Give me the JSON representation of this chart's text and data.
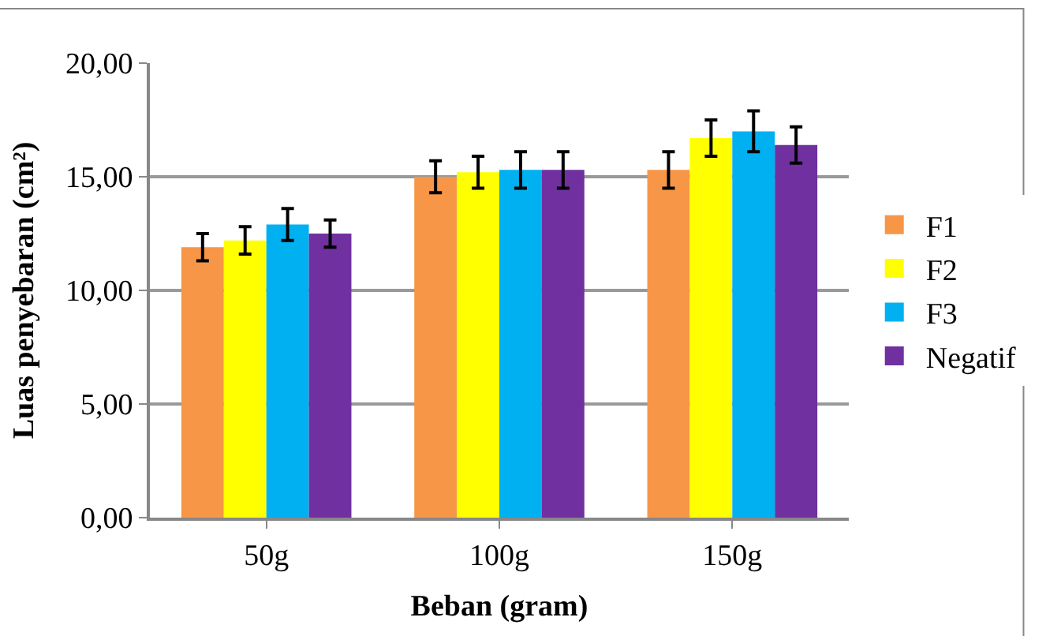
{
  "chart_data": {
    "type": "bar",
    "xlabel": "Beban (gram)",
    "ylabel": "Luas penyebaran (cm²)",
    "categories": [
      "50g",
      "100g",
      "150g"
    ],
    "series": [
      {
        "name": "F1",
        "color": "#f79646",
        "values": [
          11.9,
          15.0,
          15.3
        ],
        "errors": [
          0.6,
          0.7,
          0.8
        ]
      },
      {
        "name": "F2",
        "color": "#ffff00",
        "values": [
          12.2,
          15.2,
          16.7
        ],
        "errors": [
          0.6,
          0.7,
          0.8
        ]
      },
      {
        "name": "F3",
        "color": "#00b0f0",
        "values": [
          12.9,
          15.3,
          17.0
        ],
        "errors": [
          0.7,
          0.8,
          0.9
        ]
      },
      {
        "name": "Negatif",
        "color": "#7030a0",
        "values": [
          12.5,
          15.3,
          16.4
        ],
        "errors": [
          0.6,
          0.8,
          0.8
        ]
      }
    ],
    "ylim": [
      0,
      20
    ],
    "yticks": [
      {
        "value": 0,
        "label": "0,00"
      },
      {
        "value": 5,
        "label": "5,00"
      },
      {
        "value": 10,
        "label": "10,00"
      },
      {
        "value": 15,
        "label": "15,00"
      },
      {
        "value": 20,
        "label": "20,00"
      }
    ],
    "grid": "y",
    "legend": "right"
  }
}
